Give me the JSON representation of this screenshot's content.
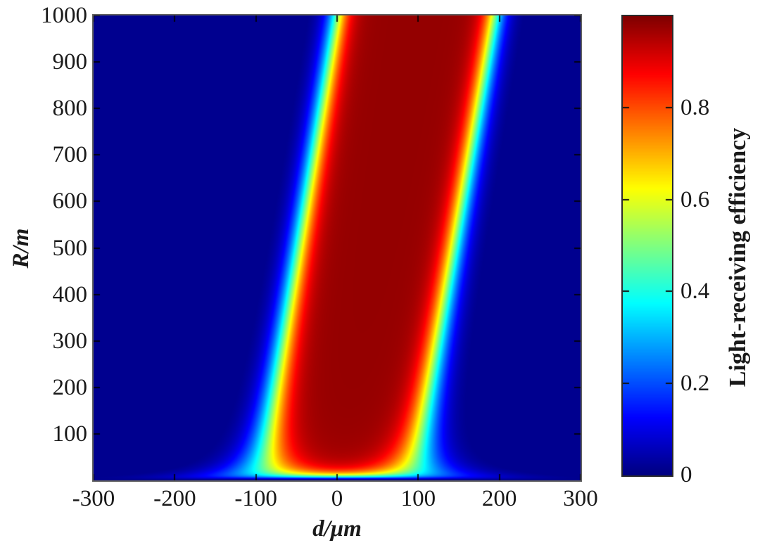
{
  "chart_data": {
    "type": "heatmap",
    "title": "",
    "xlabel": "d/μm",
    "ylabel": "R/m",
    "xlim": [
      -300,
      300
    ],
    "ylim": [
      0,
      1000
    ],
    "xticks": [
      -300,
      -200,
      -100,
      0,
      100,
      200,
      300
    ],
    "yticks": [
      100,
      200,
      300,
      400,
      500,
      600,
      700,
      800,
      900,
      1000
    ],
    "grid": false,
    "colormap": "jet",
    "clim": [
      0,
      1
    ],
    "colorbar": {
      "label": "Light-receiving efficiency",
      "ticks": [
        0,
        0.2,
        0.4,
        0.6,
        0.8
      ],
      "position": "right"
    },
    "band": {
      "description": "Tilted high-efficiency band: efficiency ~0.98 inside, ~0 outside; rainbow (jet) transition at edges; edges flare outward and efficiency drops to 0 as R approaches 0 at the bottom of the plot.",
      "max_efficiency": 0.98,
      "background_efficiency": 0.015,
      "left_edge_d_um": {
        "R0": -95,
        "R1000": 0
      },
      "right_edge_d_um": {
        "R0": 95,
        "R1000": 195
      },
      "edge_transition_width_um": 8,
      "bottom_flare_scale": 600,
      "bottom_flare_offset_m": 5,
      "vertical_onset_m": 7
    },
    "band_edges_sampled": {
      "R_m": [
        0,
        200,
        400,
        600,
        800,
        1000
      ],
      "left_d_um": [
        -95,
        -76,
        -57,
        -38,
        -19,
        0
      ],
      "right_d_um": [
        95,
        115,
        135,
        155,
        175,
        195
      ]
    }
  }
}
